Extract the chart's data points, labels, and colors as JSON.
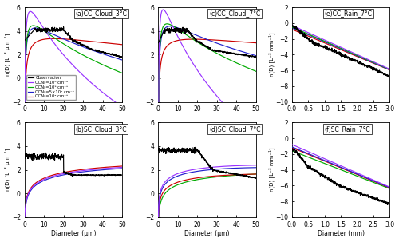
{
  "titles": [
    "(a)CC_Cloud_3°C",
    "(c)CC_Cloud_7°C",
    "(e)CC_Rain_7°C",
    "(b)SC_Cloud_3°C",
    "(d)SC_Cloud_7°C",
    "(f)SC_Rain_7°C"
  ],
  "ylabel_cloud": "n(D) [L⁻³ μm⁻¹]",
  "ylabel_rain": "n(D) [L⁻³ mm⁻¹]",
  "xlabel_cloud": "Diameter (μm)",
  "xlabel_rain": "Diameter (mm)",
  "col_obs": "#000000",
  "col_ccn6": "#9933ff",
  "col_ccn5": "#00aa00",
  "col_ccn5x": "#2222cc",
  "col_ccn2": "#cc0000",
  "legend_labels": [
    "Observation",
    "CCN₀=10⁶ cm⁻³",
    "CCN₀=10⁵ cm⁻³",
    "CCN₀=5×10² cm⁻³",
    "CCN₀=10² cm⁻³"
  ],
  "ylim_cloud": [
    -2.0,
    6.0
  ],
  "ylim_rain": [
    -10.0,
    2.0
  ],
  "xlim_cloud": [
    0,
    50
  ],
  "xlim_rain": [
    0.0,
    3.0
  ]
}
